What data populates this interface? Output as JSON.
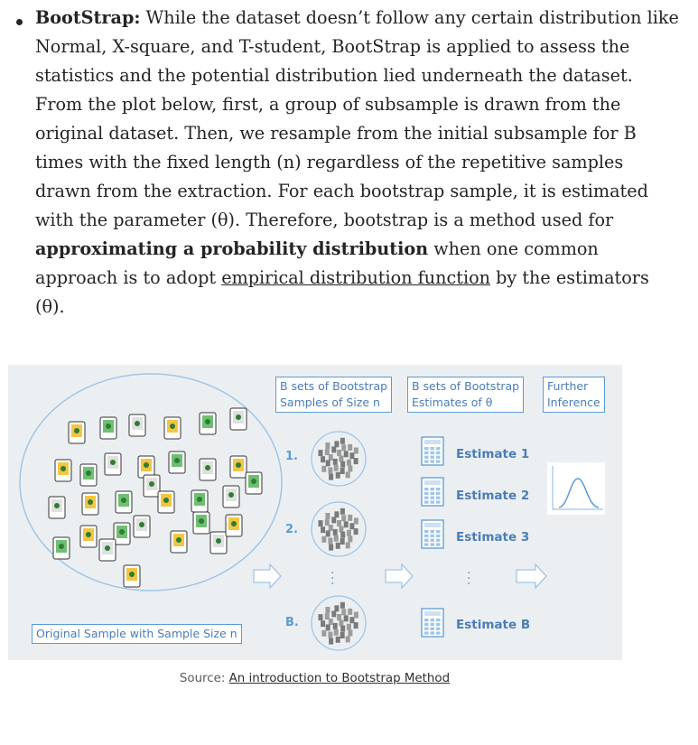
{
  "paragraph": {
    "lines": [
      {
        "parts": [
          {
            "b": "BootStrap:"
          },
          {
            "t": " While the dataset doesn’t follow any certain distribution like"
          }
        ]
      },
      {
        "parts": [
          {
            "t": "Normal, X-square, and T-student, BootStrap is applied to assess the"
          }
        ]
      },
      {
        "parts": [
          {
            "t": "statistics and the potential distribution lied underneath the dataset."
          }
        ]
      },
      {
        "parts": [
          {
            "t": "From the plot below, first, a group of subsample is drawn from the"
          }
        ]
      },
      {
        "parts": [
          {
            "t": "original dataset. Then, we resample from the initial subsample for B"
          }
        ]
      },
      {
        "parts": [
          {
            "t": "times with the fixed length (n) regardless of the repetitive samples"
          }
        ]
      },
      {
        "parts": [
          {
            "t": "drawn from the extraction. For each bootstrap sample, it is estimated"
          }
        ]
      },
      {
        "parts": [
          {
            "t": "with the parameter (θ). Therefore, bootstrap is a method used for"
          }
        ]
      },
      {
        "parts": [
          {
            "b": "approximating a probability distribution"
          },
          {
            "t": " when one common"
          }
        ]
      },
      {
        "parts": [
          {
            "t": "approach is to adopt "
          },
          {
            "u": "empirical distribution function"
          },
          {
            "t": " by the estimators"
          }
        ]
      },
      {
        "parts": [
          {
            "t": "(θ)."
          }
        ]
      }
    ]
  },
  "figure": {
    "header_bootstrap_samples_1": "B sets of Bootstrap",
    "header_bootstrap_samples_2": "Samples of Size n",
    "header_bootstrap_estimates_1": "B sets of Bootstrap",
    "header_bootstrap_estimates_2": "Estimates of θ",
    "header_further_1": "Further",
    "header_further_2": "Inference",
    "original_sample_label": "Original Sample with Sample Size n",
    "row_labels": [
      "1.",
      "2.",
      "B."
    ],
    "estimates": [
      "Estimate 1",
      "Estimate 2",
      "Estimate 3",
      "Estimate B"
    ],
    "accent_color": "#5b9bd5"
  },
  "caption": {
    "prefix": "Source: ",
    "link_text": "An introduction to Bootstrap Method"
  }
}
